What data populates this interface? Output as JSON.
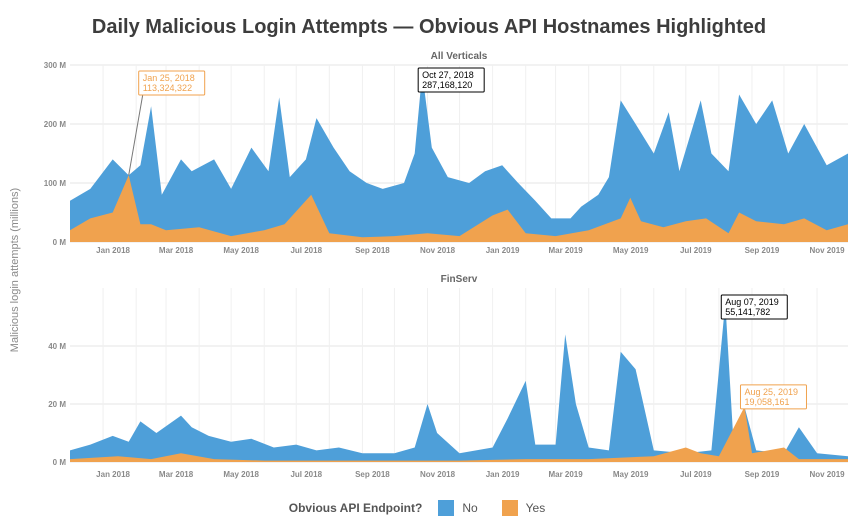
{
  "title": "Daily Malicious Login Attempts — Obvious API Hostnames Highlighted",
  "colors": {
    "no": "#4e9fd9",
    "yes": "#f0a24e",
    "grid": "#e6e6e6",
    "axis_text": "#8a8a8a"
  },
  "y_axis_label": "Malicious login attempts (millions)",
  "x_tick_labels": [
    "Jan 2018",
    "Mar 2018",
    "May 2018",
    "Jul 2018",
    "Sep 2018",
    "Nov 2018",
    "Jan 2019",
    "Mar 2019",
    "May 2019",
    "Jul 2019",
    "Sep 2019",
    "Nov 2019"
  ],
  "legend": {
    "title": "Obvious API Endpoint?",
    "no_label": "No",
    "yes_label": "Yes"
  },
  "chart_data": [
    {
      "type": "area",
      "title": "All Verticals",
      "x_range": [
        "2017-12-01",
        "2019-11-30"
      ],
      "ylim": [
        0,
        300
      ],
      "y_ticks": [
        0,
        100,
        200,
        300
      ],
      "y_tick_labels": [
        "0 M",
        "100 M",
        "200 M",
        "300 M"
      ],
      "series": [
        {
          "name": "No",
          "points": [
            [
              "2017-12-01",
              70
            ],
            [
              "2017-12-20",
              90
            ],
            [
              "2018-01-10",
              140
            ],
            [
              "2018-01-25",
              113
            ],
            [
              "2018-02-05",
              130
            ],
            [
              "2018-02-15",
              230
            ],
            [
              "2018-02-25",
              80
            ],
            [
              "2018-03-15",
              140
            ],
            [
              "2018-03-25",
              120
            ],
            [
              "2018-04-15",
              140
            ],
            [
              "2018-05-01",
              90
            ],
            [
              "2018-05-20",
              160
            ],
            [
              "2018-06-05",
              120
            ],
            [
              "2018-06-15",
              245
            ],
            [
              "2018-06-25",
              110
            ],
            [
              "2018-07-10",
              140
            ],
            [
              "2018-07-20",
              210
            ],
            [
              "2018-08-05",
              160
            ],
            [
              "2018-08-20",
              120
            ],
            [
              "2018-09-05",
              100
            ],
            [
              "2018-09-20",
              90
            ],
            [
              "2018-10-10",
              100
            ],
            [
              "2018-10-20",
              150
            ],
            [
              "2018-10-27",
              287
            ],
            [
              "2018-11-05",
              160
            ],
            [
              "2018-11-20",
              110
            ],
            [
              "2018-12-10",
              100
            ],
            [
              "2018-12-25",
              120
            ],
            [
              "2019-01-10",
              130
            ],
            [
              "2019-01-25",
              100
            ],
            [
              "2019-02-10",
              70
            ],
            [
              "2019-02-25",
              40
            ],
            [
              "2019-03-15",
              40
            ],
            [
              "2019-03-25",
              60
            ],
            [
              "2019-04-10",
              80
            ],
            [
              "2019-04-20",
              110
            ],
            [
              "2019-05-01",
              240
            ],
            [
              "2019-05-15",
              200
            ],
            [
              "2019-06-01",
              150
            ],
            [
              "2019-06-15",
              220
            ],
            [
              "2019-06-25",
              120
            ],
            [
              "2019-07-15",
              240
            ],
            [
              "2019-07-25",
              150
            ],
            [
              "2019-08-10",
              120
            ],
            [
              "2019-08-20",
              250
            ],
            [
              "2019-09-05",
              200
            ],
            [
              "2019-09-20",
              240
            ],
            [
              "2019-10-05",
              150
            ],
            [
              "2019-10-20",
              200
            ],
            [
              "2019-11-10",
              130
            ],
            [
              "2019-11-30",
              150
            ]
          ]
        },
        {
          "name": "Yes",
          "points": [
            [
              "2017-12-01",
              20
            ],
            [
              "2017-12-20",
              40
            ],
            [
              "2018-01-10",
              50
            ],
            [
              "2018-01-25",
              113
            ],
            [
              "2018-02-05",
              30
            ],
            [
              "2018-02-15",
              30
            ],
            [
              "2018-03-01",
              20
            ],
            [
              "2018-04-01",
              25
            ],
            [
              "2018-05-01",
              10
            ],
            [
              "2018-06-01",
              20
            ],
            [
              "2018-06-20",
              30
            ],
            [
              "2018-07-15",
              80
            ],
            [
              "2018-08-01",
              15
            ],
            [
              "2018-09-01",
              8
            ],
            [
              "2018-10-01",
              10
            ],
            [
              "2018-11-01",
              15
            ],
            [
              "2018-12-01",
              10
            ],
            [
              "2019-01-01",
              45
            ],
            [
              "2019-01-15",
              55
            ],
            [
              "2019-02-01",
              15
            ],
            [
              "2019-03-01",
              10
            ],
            [
              "2019-04-01",
              20
            ],
            [
              "2019-05-01",
              40
            ],
            [
              "2019-05-10",
              75
            ],
            [
              "2019-05-20",
              35
            ],
            [
              "2019-06-10",
              25
            ],
            [
              "2019-07-01",
              35
            ],
            [
              "2019-07-20",
              40
            ],
            [
              "2019-08-10",
              15
            ],
            [
              "2019-08-20",
              50
            ],
            [
              "2019-09-05",
              35
            ],
            [
              "2019-10-01",
              30
            ],
            [
              "2019-10-20",
              40
            ],
            [
              "2019-11-10",
              20
            ],
            [
              "2019-11-30",
              30
            ]
          ]
        }
      ],
      "annotations": [
        {
          "date": "2018-01-25",
          "value": 113,
          "label": "Jan 25, 2018",
          "sublabel": "113,324,322",
          "style": "orange"
        },
        {
          "date": "2018-10-27",
          "value": 287,
          "label": "Oct 27, 2018",
          "sublabel": "287,168,120",
          "style": "black"
        }
      ]
    },
    {
      "type": "area",
      "title": "FinServ",
      "x_range": [
        "2017-12-01",
        "2019-11-30"
      ],
      "ylim": [
        0,
        60
      ],
      "y_ticks": [
        0,
        20,
        40
      ],
      "y_tick_labels": [
        "0 M",
        "20 M",
        "40 M"
      ],
      "series": [
        {
          "name": "No",
          "points": [
            [
              "2017-12-01",
              4
            ],
            [
              "2017-12-20",
              6
            ],
            [
              "2018-01-10",
              9
            ],
            [
              "2018-01-25",
              7
            ],
            [
              "2018-02-05",
              14
            ],
            [
              "2018-02-20",
              10
            ],
            [
              "2018-03-15",
              16
            ],
            [
              "2018-03-25",
              12
            ],
            [
              "2018-04-10",
              9
            ],
            [
              "2018-05-01",
              7
            ],
            [
              "2018-05-20",
              8
            ],
            [
              "2018-06-10",
              5
            ],
            [
              "2018-07-01",
              6
            ],
            [
              "2018-07-20",
              4
            ],
            [
              "2018-08-10",
              5
            ],
            [
              "2018-09-01",
              3
            ],
            [
              "2018-10-01",
              3
            ],
            [
              "2018-10-20",
              5
            ],
            [
              "2018-11-01",
              20
            ],
            [
              "2018-11-10",
              10
            ],
            [
              "2018-12-01",
              3
            ],
            [
              "2019-01-01",
              5
            ],
            [
              "2019-01-15",
              15
            ],
            [
              "2019-02-01",
              28
            ],
            [
              "2019-02-10",
              6
            ],
            [
              "2019-03-01",
              6
            ],
            [
              "2019-03-10",
              44
            ],
            [
              "2019-03-20",
              20
            ],
            [
              "2019-04-01",
              5
            ],
            [
              "2019-04-20",
              4
            ],
            [
              "2019-05-01",
              38
            ],
            [
              "2019-05-15",
              32
            ],
            [
              "2019-06-01",
              4
            ],
            [
              "2019-07-01",
              3
            ],
            [
              "2019-07-25",
              4
            ],
            [
              "2019-08-07",
              55
            ],
            [
              "2019-08-15",
              5
            ],
            [
              "2019-08-25",
              19
            ],
            [
              "2019-09-05",
              4
            ],
            [
              "2019-10-01",
              3
            ],
            [
              "2019-10-15",
              12
            ],
            [
              "2019-11-01",
              3
            ],
            [
              "2019-11-30",
              2
            ]
          ]
        },
        {
          "name": "Yes",
          "points": [
            [
              "2017-12-01",
              1
            ],
            [
              "2018-01-15",
              2
            ],
            [
              "2018-02-15",
              1
            ],
            [
              "2018-03-15",
              3
            ],
            [
              "2018-04-15",
              1
            ],
            [
              "2018-06-01",
              0.5
            ],
            [
              "2018-08-01",
              0.5
            ],
            [
              "2018-10-01",
              0.5
            ],
            [
              "2018-12-01",
              0.5
            ],
            [
              "2019-02-01",
              1
            ],
            [
              "2019-04-01",
              1
            ],
            [
              "2019-06-01",
              2
            ],
            [
              "2019-07-01",
              5
            ],
            [
              "2019-07-15",
              3
            ],
            [
              "2019-08-01",
              2
            ],
            [
              "2019-08-25",
              19
            ],
            [
              "2019-09-01",
              3
            ],
            [
              "2019-10-01",
              5
            ],
            [
              "2019-10-15",
              1
            ],
            [
              "2019-11-30",
              1
            ]
          ]
        }
      ],
      "annotations": [
        {
          "date": "2019-08-07",
          "value": 55,
          "label": "Aug 07, 2019",
          "sublabel": "55,141,782",
          "style": "black"
        },
        {
          "date": "2019-08-25",
          "value": 19,
          "label": "Aug 25, 2019",
          "sublabel": "19,058,161",
          "style": "orange"
        }
      ]
    }
  ]
}
